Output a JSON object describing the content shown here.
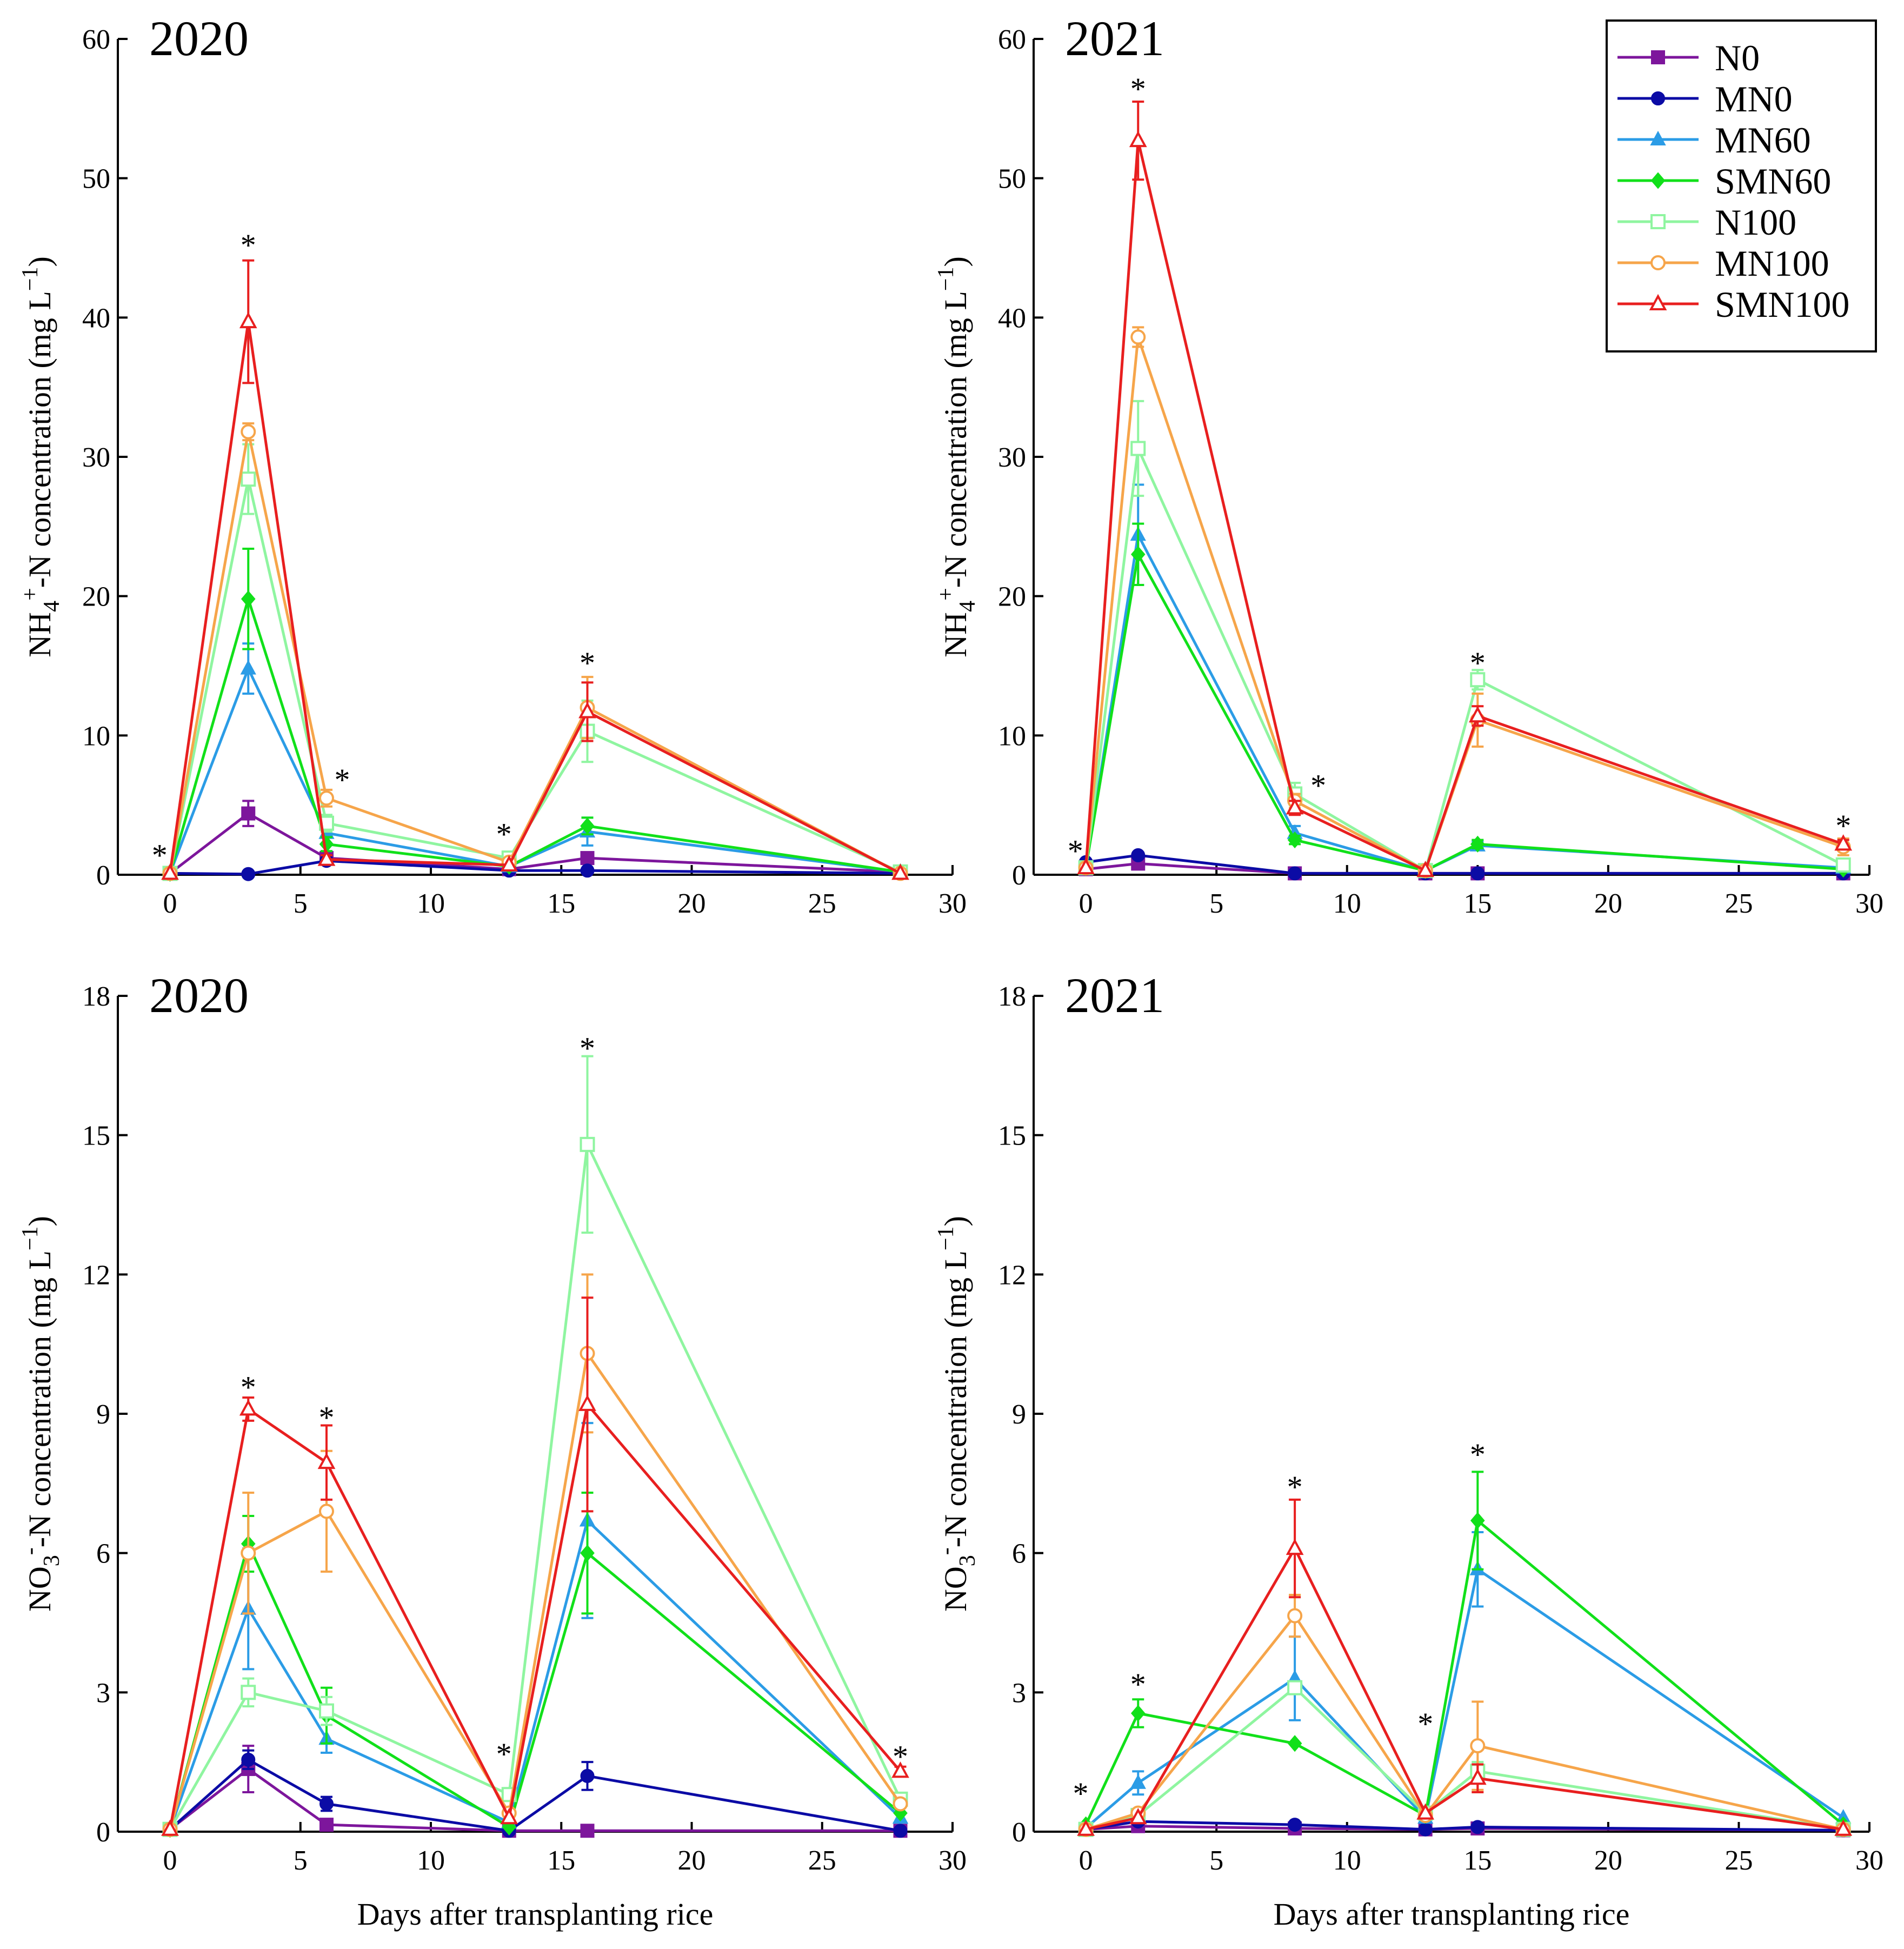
{
  "figure": {
    "legend": [
      {
        "key": "N0",
        "label": "N0",
        "color": "#7d169c",
        "marker": "square-filled"
      },
      {
        "key": "MN0",
        "label": "MN0",
        "color": "#0b0ba5",
        "marker": "circle-filled"
      },
      {
        "key": "MN60",
        "label": "MN60",
        "color": "#2b9ce6",
        "marker": "triangle-filled"
      },
      {
        "key": "SMN60",
        "label": "SMN60",
        "color": "#11e01a",
        "marker": "diamond-filled"
      },
      {
        "key": "N100",
        "label": "N100",
        "color": "#8ff5a0",
        "marker": "square-open"
      },
      {
        "key": "MN100",
        "label": "MN100",
        "color": "#f6a54a",
        "marker": "circle-open"
      },
      {
        "key": "SMN100",
        "label": "SMN100",
        "color": "#e81f1f",
        "marker": "triangle-open"
      }
    ],
    "shared_xlabel": "Days after transplanting rice"
  },
  "chart_data": [
    {
      "type": "line",
      "panel": "top-left",
      "title": "2020",
      "xlabel": "",
      "ylabel_parts": [
        "NH",
        "4",
        "+",
        "-N concentration (mg L",
        "−1",
        ")"
      ],
      "xlim": [
        -2,
        30
      ],
      "ylim": [
        0,
        60
      ],
      "xticks": [
        0,
        5,
        10,
        15,
        20,
        25,
        30
      ],
      "yticks": [
        0,
        10,
        20,
        30,
        40,
        50,
        60
      ],
      "x": [
        0,
        3,
        6,
        13,
        16,
        28
      ],
      "series": [
        {
          "name": "N0",
          "values": [
            0.1,
            4.4,
            1.2,
            0.4,
            1.2,
            0.2
          ],
          "err": [
            0,
            0.9,
            0.3,
            0,
            0.3,
            0
          ]
        },
        {
          "name": "MN0",
          "values": [
            0.1,
            0.05,
            1.0,
            0.3,
            0.3,
            0.1
          ],
          "err": [
            0,
            0,
            0.2,
            0,
            0,
            0
          ]
        },
        {
          "name": "MN60",
          "values": [
            0.1,
            14.8,
            3.0,
            0.6,
            3.1,
            0.2
          ],
          "err": [
            0,
            1.8,
            0.8,
            0,
            1.0,
            0
          ]
        },
        {
          "name": "SMN60",
          "values": [
            0.1,
            19.8,
            2.2,
            0.6,
            3.5,
            0.2
          ],
          "err": [
            0,
            3.6,
            0.5,
            0,
            0.6,
            0
          ]
        },
        {
          "name": "N100",
          "values": [
            0.1,
            28.4,
            3.7,
            1.2,
            10.3,
            0.2
          ],
          "err": [
            0,
            2.5,
            0.6,
            0.3,
            2.2,
            0
          ]
        },
        {
          "name": "MN100",
          "values": [
            0.1,
            31.8,
            5.5,
            0.9,
            12.0,
            0.1
          ],
          "err": [
            0,
            0.6,
            0.6,
            0,
            2.2,
            0
          ]
        },
        {
          "name": "SMN100",
          "values": [
            0.1,
            39.7,
            1.1,
            0.7,
            11.7,
            0.1
          ],
          "err": [
            0,
            4.4,
            0.3,
            0,
            2.1,
            0
          ]
        }
      ],
      "stars": [
        {
          "x": -0.4,
          "y": 1.5,
          "label": "*"
        },
        {
          "x": 3,
          "y": 45.3,
          "label": "*"
        },
        {
          "x": 6.6,
          "y": 6.9,
          "label": "*"
        },
        {
          "x": 12.8,
          "y": 3.0,
          "label": "*"
        },
        {
          "x": 16,
          "y": 15.3,
          "label": "*"
        }
      ]
    },
    {
      "type": "line",
      "panel": "top-right",
      "title": "2021",
      "xlabel": "",
      "ylabel_parts": [
        "NH",
        "4",
        "+",
        "-N concentration (mg L",
        "−1",
        ")"
      ],
      "xlim": [
        -2,
        30
      ],
      "ylim": [
        0,
        60
      ],
      "xticks": [
        0,
        5,
        10,
        15,
        20,
        25,
        30
      ],
      "yticks": [
        0,
        10,
        20,
        30,
        40,
        50,
        60
      ],
      "x": [
        0,
        2,
        8,
        13,
        15,
        29
      ],
      "series": [
        {
          "name": "N0",
          "values": [
            0.4,
            0.8,
            0.1,
            0.1,
            0.1,
            0.1
          ],
          "err": [
            0,
            0,
            0,
            0,
            0,
            0
          ]
        },
        {
          "name": "MN0",
          "values": [
            0.9,
            1.4,
            0.1,
            0.1,
            0.1,
            0.1
          ],
          "err": [
            0,
            0,
            0,
            0,
            0,
            0
          ]
        },
        {
          "name": "MN60",
          "values": [
            0.5,
            24.4,
            3.0,
            0.3,
            2.1,
            0.5
          ],
          "err": [
            0,
            3.6,
            0.5,
            0,
            0.3,
            0
          ]
        },
        {
          "name": "SMN60",
          "values": [
            0.5,
            23.0,
            2.5,
            0.3,
            2.2,
            0.4
          ],
          "err": [
            0,
            2.2,
            0.3,
            0,
            0.3,
            0
          ]
        },
        {
          "name": "N100",
          "values": [
            0.5,
            30.6,
            5.8,
            0.3,
            14.0,
            0.7
          ],
          "err": [
            0,
            3.4,
            0.8,
            0,
            0.7,
            0
          ]
        },
        {
          "name": "MN100",
          "values": [
            0.5,
            38.6,
            5.3,
            0.3,
            11.1,
            2.0
          ],
          "err": [
            0,
            0.7,
            0.5,
            0,
            1.9,
            0.6
          ]
        },
        {
          "name": "SMN100",
          "values": [
            0.5,
            52.7,
            4.8,
            0.3,
            11.4,
            2.2
          ],
          "err": [
            0,
            2.8,
            0.5,
            0,
            0.7,
            0.3
          ]
        }
      ],
      "stars": [
        {
          "x": -0.4,
          "y": 1.8,
          "label": "*"
        },
        {
          "x": 2,
          "y": 56.5,
          "label": "*"
        },
        {
          "x": 8.9,
          "y": 6.5,
          "label": "*"
        },
        {
          "x": 15,
          "y": 15.3,
          "label": "*"
        },
        {
          "x": 29,
          "y": 3.6,
          "label": "*"
        }
      ]
    },
    {
      "type": "line",
      "panel": "bottom-left",
      "title": "2020",
      "xlabel": "Days after transplanting rice",
      "ylabel_parts": [
        "NO",
        "3",
        "-",
        "-N concentration (mg L",
        "−1",
        ")"
      ],
      "xlim": [
        -2,
        30
      ],
      "ylim": [
        0,
        18
      ],
      "xticks": [
        0,
        5,
        10,
        15,
        20,
        25,
        30
      ],
      "yticks": [
        0,
        3,
        6,
        9,
        12,
        15,
        18
      ],
      "x": [
        0,
        3,
        6,
        13,
        16,
        28
      ],
      "series": [
        {
          "name": "N0",
          "values": [
            0.05,
            1.35,
            0.15,
            0.02,
            0.02,
            0.02
          ],
          "err": [
            0,
            0.5,
            0,
            0,
            0,
            0
          ]
        },
        {
          "name": "MN0",
          "values": [
            0.05,
            1.55,
            0.6,
            0.02,
            1.2,
            0.02
          ],
          "err": [
            0,
            0.2,
            0.15,
            0,
            0.3,
            0
          ]
        },
        {
          "name": "MN60",
          "values": [
            0.05,
            4.8,
            2.0,
            0.2,
            6.7,
            0.3
          ],
          "err": [
            0,
            1.3,
            0.3,
            0,
            2.1,
            0
          ]
        },
        {
          "name": "SMN60",
          "values": [
            0.05,
            6.2,
            2.5,
            0.1,
            6.0,
            0.4
          ],
          "err": [
            0,
            0.6,
            0.6,
            0,
            1.3,
            0
          ]
        },
        {
          "name": "N100",
          "values": [
            0.05,
            3.0,
            2.6,
            0.8,
            14.8,
            0.7
          ],
          "err": [
            0,
            0.3,
            0.3,
            0,
            1.9,
            0
          ]
        },
        {
          "name": "MN100",
          "values": [
            0.05,
            6.0,
            6.9,
            0.4,
            10.3,
            0.6
          ],
          "err": [
            0,
            1.3,
            1.3,
            0,
            1.7,
            0
          ]
        },
        {
          "name": "SMN100",
          "values": [
            0.05,
            9.1,
            7.95,
            0.3,
            9.2,
            1.3
          ],
          "err": [
            0,
            0.25,
            0.8,
            0,
            2.3,
            0.1
          ]
        }
      ],
      "stars": [
        {
          "x": 3,
          "y": 9.6,
          "label": "*"
        },
        {
          "x": 6,
          "y": 8.95,
          "label": "*"
        },
        {
          "x": 12.8,
          "y": 1.7,
          "label": "*"
        },
        {
          "x": 16,
          "y": 16.9,
          "label": "*"
        },
        {
          "x": 28,
          "y": 1.65,
          "label": "*"
        }
      ]
    },
    {
      "type": "line",
      "panel": "bottom-right",
      "title": "2021",
      "xlabel": "Days after transplanting rice",
      "ylabel_parts": [
        "NO",
        "3",
        "-",
        "-N concentration (mg L",
        "−1",
        ")"
      ],
      "xlim": [
        -2,
        30
      ],
      "ylim": [
        0,
        18
      ],
      "xticks": [
        0,
        5,
        10,
        15,
        20,
        25,
        30
      ],
      "yticks": [
        0,
        3,
        6,
        9,
        12,
        15,
        18
      ],
      "x": [
        0,
        2,
        8,
        13,
        15,
        29
      ],
      "series": [
        {
          "name": "N0",
          "values": [
            0.05,
            0.12,
            0.07,
            0.05,
            0.07,
            0.03
          ],
          "err": [
            0,
            0,
            0,
            0,
            0,
            0
          ]
        },
        {
          "name": "MN0",
          "values": [
            0.05,
            0.22,
            0.15,
            0.05,
            0.1,
            0.03
          ],
          "err": [
            0,
            0,
            0,
            0,
            0,
            0
          ]
        },
        {
          "name": "MN60",
          "values": [
            0.08,
            1.05,
            3.3,
            0.3,
            5.65,
            0.3
          ],
          "err": [
            0,
            0.25,
            0.9,
            0,
            0.8,
            0
          ]
        },
        {
          "name": "SMN60",
          "values": [
            0.15,
            2.55,
            1.9,
            0.35,
            6.7,
            0.15
          ],
          "err": [
            0,
            0.3,
            0,
            0,
            1.05,
            0
          ]
        },
        {
          "name": "N100",
          "values": [
            0.05,
            0.35,
            3.1,
            0.4,
            1.3,
            0.05
          ],
          "err": [
            0,
            0,
            0,
            0,
            0.2,
            0
          ]
        },
        {
          "name": "MN100",
          "values": [
            0.05,
            0.4,
            4.65,
            0.35,
            1.85,
            0.05
          ],
          "err": [
            0,
            0,
            0.45,
            0,
            0.95,
            0
          ]
        },
        {
          "name": "SMN100",
          "values": [
            0.05,
            0.3,
            6.1,
            0.4,
            1.15,
            0.05
          ],
          "err": [
            0,
            0,
            1.05,
            0,
            0.3,
            0
          ]
        }
      ],
      "stars": [
        {
          "x": -0.2,
          "y": 0.85,
          "label": "*"
        },
        {
          "x": 2,
          "y": 3.2,
          "label": "*"
        },
        {
          "x": 8,
          "y": 7.45,
          "label": "*"
        },
        {
          "x": 13,
          "y": 2.35,
          "label": "*"
        },
        {
          "x": 15,
          "y": 8.15,
          "label": "*"
        }
      ]
    }
  ]
}
